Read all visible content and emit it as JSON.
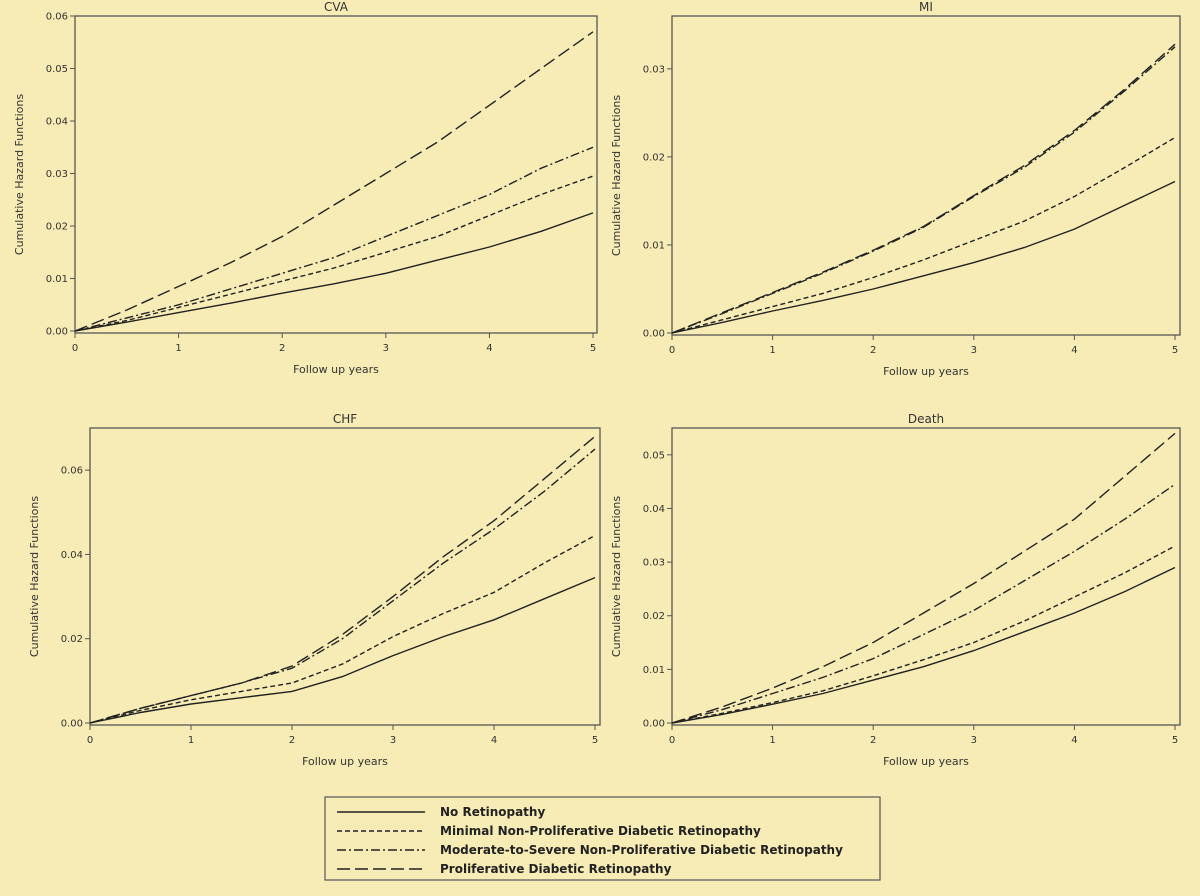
{
  "background_color": "#f7ecb6",
  "line_color": "#222222",
  "chart_data": [
    {
      "type": "line",
      "title": "CVA",
      "xlabel": "Follow up years",
      "ylabel": "Cumulative Hazard Functions",
      "xlim": [
        0,
        5
      ],
      "ylim": [
        0,
        0.06
      ],
      "xticks": [
        "0",
        "1",
        "2",
        "3",
        "4",
        "5"
      ],
      "yticks": [
        "0.00",
        "0.01",
        "0.02",
        "0.03",
        "0.04",
        "0.05",
        "0.06"
      ],
      "ytick_values": [
        0,
        0.01,
        0.02,
        0.03,
        0.04,
        0.05,
        0.06
      ],
      "x": [
        0,
        0.5,
        1,
        1.5,
        2,
        2.5,
        3,
        3.5,
        4,
        4.5,
        5
      ],
      "series": [
        {
          "name": "No Retinopathy",
          "values": [
            0,
            0.0017,
            0.0035,
            0.0053,
            0.0072,
            0.009,
            0.011,
            0.0135,
            0.016,
            0.019,
            0.0225
          ]
        },
        {
          "name": "Minimal Non-Proliferative Diabetic Retinopathy",
          "values": [
            0,
            0.002,
            0.0045,
            0.007,
            0.0095,
            0.012,
            0.015,
            0.018,
            0.022,
            0.026,
            0.0295
          ]
        },
        {
          "name": "Moderate-to-Severe Non-Proliferative Diabetic Retinopathy",
          "values": [
            0,
            0.0025,
            0.005,
            0.008,
            0.011,
            0.014,
            0.018,
            0.022,
            0.026,
            0.031,
            0.035
          ]
        },
        {
          "name": "Proliferative Diabetic Retinopathy",
          "values": [
            0,
            0.004,
            0.0085,
            0.013,
            0.018,
            0.024,
            0.03,
            0.036,
            0.043,
            0.05,
            0.057
          ]
        }
      ]
    },
    {
      "type": "line",
      "title": "MI",
      "xlabel": "Follow up years",
      "ylabel": "Cumulative Hazard Functions",
      "xlim": [
        0,
        5
      ],
      "ylim": [
        0,
        0.036
      ],
      "xticks": [
        "0",
        "1",
        "2",
        "3",
        "4",
        "5"
      ],
      "yticks": [
        "0.00",
        "0.01",
        "0.02",
        "0.03"
      ],
      "ytick_values": [
        0,
        0.01,
        0.02,
        0.03
      ],
      "x": [
        0,
        0.5,
        1,
        1.5,
        2,
        2.5,
        3,
        3.5,
        4,
        4.5,
        5
      ],
      "series": [
        {
          "name": "No Retinopathy",
          "values": [
            0,
            0.0012,
            0.0025,
            0.0037,
            0.005,
            0.0065,
            0.008,
            0.0097,
            0.0118,
            0.0145,
            0.0172
          ]
        },
        {
          "name": "Minimal Non-Proliferative Diabetic Retinopathy",
          "values": [
            0,
            0.0015,
            0.003,
            0.0045,
            0.0063,
            0.0083,
            0.0105,
            0.0127,
            0.0155,
            0.0188,
            0.0222
          ]
        },
        {
          "name": "Moderate-to-Severe Non-Proliferative Diabetic Retinopathy",
          "values": [
            0,
            0.0022,
            0.0045,
            0.0068,
            0.0093,
            0.012,
            0.0155,
            0.0188,
            0.0228,
            0.0275,
            0.0325
          ]
        },
        {
          "name": "Proliferative Diabetic Retinopathy",
          "values": [
            0,
            0.0023,
            0.0046,
            0.0069,
            0.0094,
            0.0121,
            0.0156,
            0.019,
            0.023,
            0.0277,
            0.0328
          ]
        }
      ]
    },
    {
      "type": "line",
      "title": "CHF",
      "xlabel": "Follow up years",
      "ylabel": "Cumulative Hazard Functions",
      "xlim": [
        0,
        5
      ],
      "ylim": [
        0,
        0.07
      ],
      "xticks": [
        "0",
        "1",
        "2",
        "3",
        "4",
        "5"
      ],
      "yticks": [
        "0.00",
        "0.02",
        "0.04",
        "0.06"
      ],
      "ytick_values": [
        0,
        0.02,
        0.04,
        0.06
      ],
      "x": [
        0,
        0.5,
        1,
        1.5,
        2,
        2.5,
        3,
        3.5,
        4,
        4.5,
        5
      ],
      "series": [
        {
          "name": "No Retinopathy",
          "values": [
            0,
            0.0025,
            0.0045,
            0.006,
            0.0075,
            0.011,
            0.016,
            0.0205,
            0.0245,
            0.0295,
            0.0345
          ]
        },
        {
          "name": "Minimal Non-Proliferative Diabetic Retinopathy",
          "values": [
            0,
            0.003,
            0.0055,
            0.0075,
            0.0095,
            0.014,
            0.0205,
            0.026,
            0.031,
            0.038,
            0.0445
          ]
        },
        {
          "name": "Moderate-to-Severe Non-Proliferative Diabetic Retinopathy",
          "values": [
            0,
            0.0035,
            0.0065,
            0.0095,
            0.013,
            0.02,
            0.029,
            0.038,
            0.046,
            0.055,
            0.065
          ]
        },
        {
          "name": "Proliferative Diabetic Retinopathy",
          "values": [
            0,
            0.0035,
            0.0065,
            0.0095,
            0.0135,
            0.021,
            0.03,
            0.0395,
            0.048,
            0.058,
            0.068
          ]
        }
      ]
    },
    {
      "type": "line",
      "title": "Death",
      "xlabel": "Follow up years",
      "ylabel": "Cumulative Hazard Functions",
      "xlim": [
        0,
        5
      ],
      "ylim": [
        0,
        0.055
      ],
      "xticks": [
        "0",
        "1",
        "2",
        "3",
        "4",
        "5"
      ],
      "yticks": [
        "0.00",
        "0.01",
        "0.02",
        "0.03",
        "0.04",
        "0.05"
      ],
      "ytick_values": [
        0,
        0.01,
        0.02,
        0.03,
        0.04,
        0.05
      ],
      "x": [
        0,
        0.5,
        1,
        1.5,
        2,
        2.5,
        3,
        3.5,
        4,
        4.5,
        5
      ],
      "series": [
        {
          "name": "No Retinopathy",
          "values": [
            0,
            0.0016,
            0.0035,
            0.0055,
            0.008,
            0.0105,
            0.0135,
            0.017,
            0.0205,
            0.0245,
            0.029
          ]
        },
        {
          "name": "Minimal Non-Proliferative Diabetic Retinopathy",
          "values": [
            0,
            0.0018,
            0.0038,
            0.006,
            0.0088,
            0.0118,
            0.015,
            0.019,
            0.0235,
            0.028,
            0.033
          ]
        },
        {
          "name": "Moderate-to-Severe Non-Proliferative Diabetic Retinopathy",
          "values": [
            0,
            0.0025,
            0.0055,
            0.0085,
            0.012,
            0.0165,
            0.021,
            0.0265,
            0.032,
            0.038,
            0.0445
          ]
        },
        {
          "name": "Proliferative Diabetic Retinopathy",
          "values": [
            0,
            0.003,
            0.0065,
            0.0105,
            0.015,
            0.0205,
            0.026,
            0.032,
            0.038,
            0.046,
            0.054
          ]
        }
      ]
    }
  ],
  "legend": {
    "placement": "bottom-center",
    "items": [
      {
        "label": "No Retinopathy",
        "line_style": "solid"
      },
      {
        "label": "Minimal Non-Proliferative Diabetic Retinopathy",
        "line_style": "short-dash"
      },
      {
        "label": "Moderate-to-Severe Non-Proliferative Diabetic Retinopathy",
        "line_style": "dash-dot"
      },
      {
        "label": "Proliferative Diabetic Retinopathy",
        "line_style": "long-dash"
      }
    ]
  }
}
